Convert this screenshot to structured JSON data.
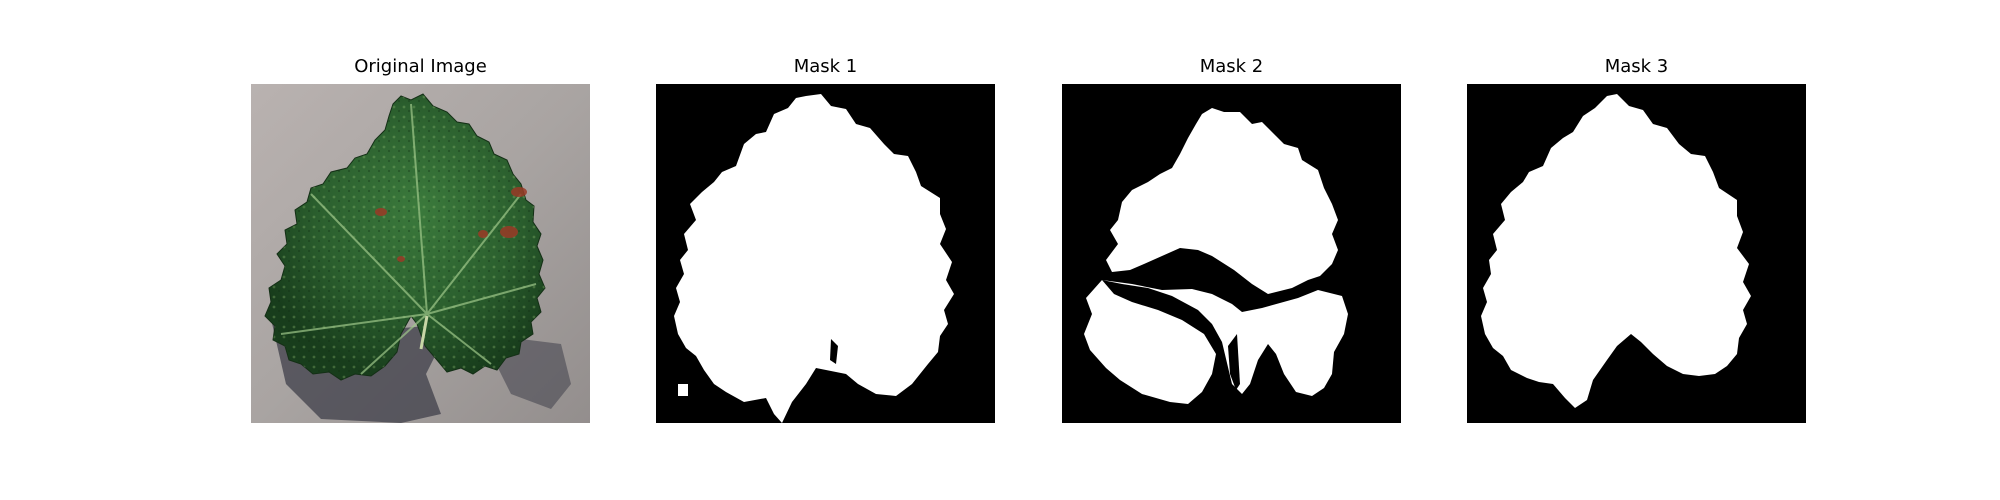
{
  "figure": {
    "panels": [
      {
        "title": "Original Image",
        "kind": "photo",
        "subject": "green grape leaf on gray pavement"
      },
      {
        "title": "Mask 1",
        "kind": "binary-mask",
        "foreground": "#ffffff",
        "background": "#000000"
      },
      {
        "title": "Mask 2",
        "kind": "binary-mask",
        "foreground": "#ffffff",
        "background": "#000000"
      },
      {
        "title": "Mask 3",
        "kind": "binary-mask",
        "foreground": "#ffffff",
        "background": "#000000"
      }
    ]
  },
  "colors": {
    "page_background": "#ffffff",
    "mask_foreground": "#ffffff",
    "mask_background": "#000000",
    "ground_gray": "#a9a4a2",
    "leaf_dark_green": "#1f4a22",
    "leaf_mid_green": "#2f6b33",
    "leaf_highlight": "#6f9c5a",
    "lesion_red": "#9a3a26"
  }
}
